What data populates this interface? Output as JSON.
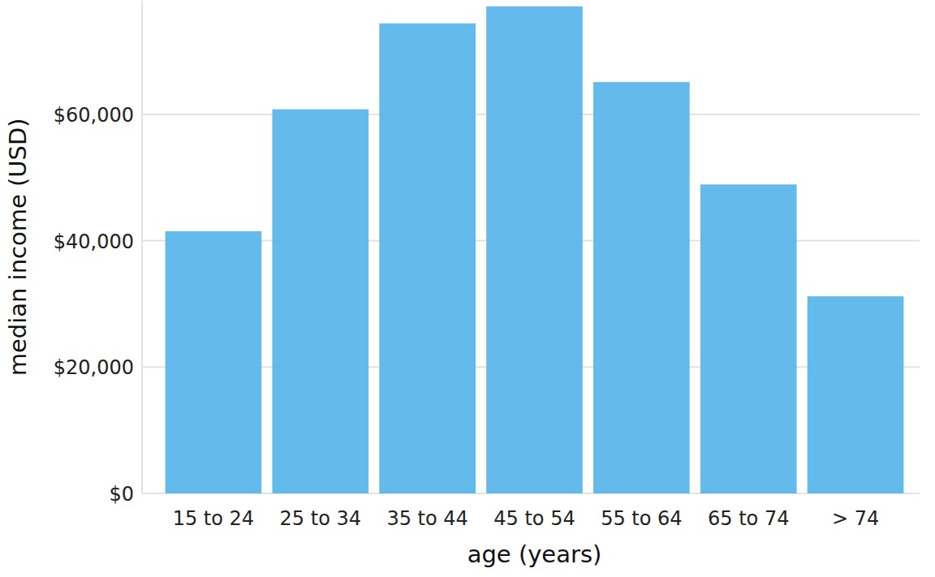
{
  "chart_data": {
    "type": "bar",
    "x_label": "age (years)",
    "y_label": "median income (USD)",
    "categories": [
      "15 to 24",
      "25 to 34",
      "35 to 44",
      "45 to 54",
      "55 to 64",
      "65 to 74",
      "> 74"
    ],
    "values": [
      41500,
      60800,
      74400,
      77100,
      65100,
      48900,
      31200
    ],
    "color": "#56B4E9",
    "ylim": [
      0,
      78000
    ],
    "yticks": [
      {
        "value": 0,
        "label": "$0"
      },
      {
        "value": 20000,
        "label": "$20,000"
      },
      {
        "value": 40000,
        "label": "$40,000"
      },
      {
        "value": 60000,
        "label": "$60,000"
      }
    ],
    "grid": true
  }
}
